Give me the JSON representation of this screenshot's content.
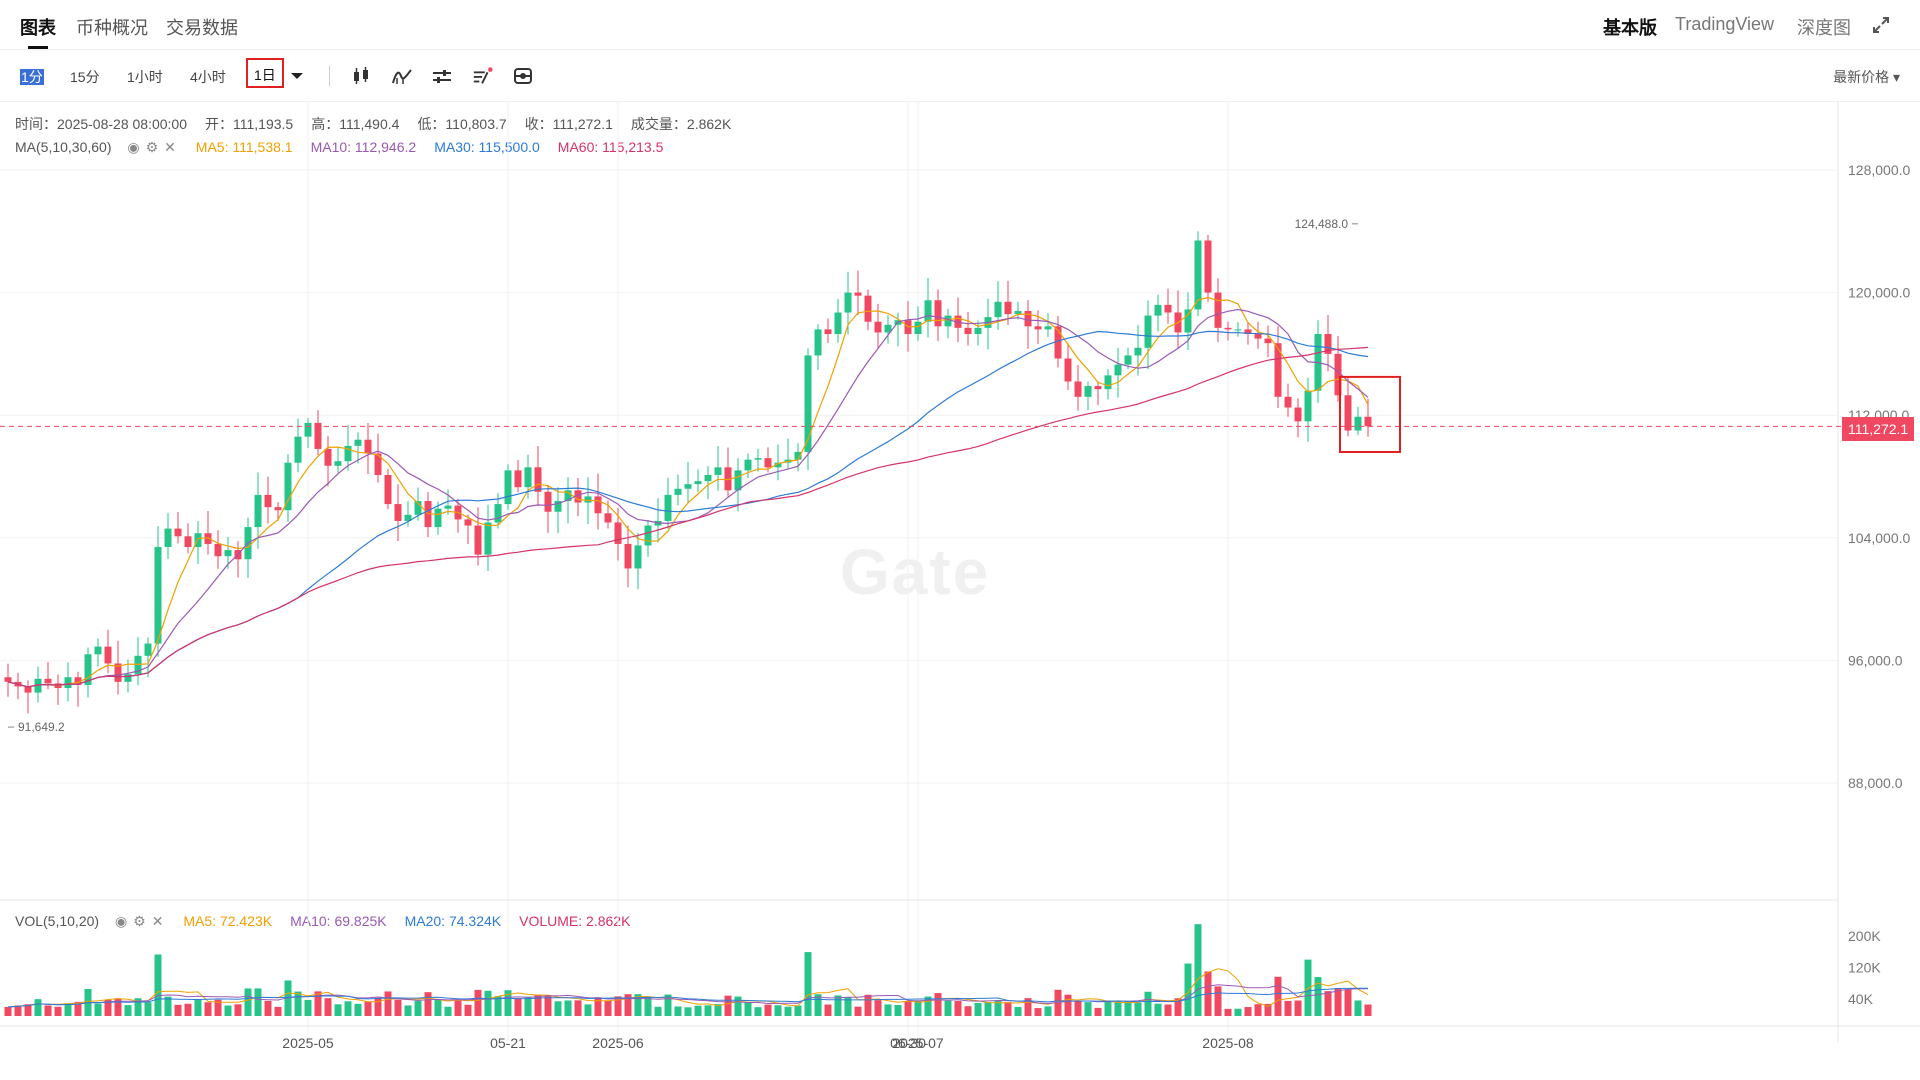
{
  "tabs": [
    {
      "label": "图表",
      "active": true
    },
    {
      "label": "币种概况",
      "active": false
    },
    {
      "label": "交易数据",
      "active": false
    }
  ],
  "views": [
    {
      "label": "基本版",
      "active": true
    },
    {
      "label": "TradingView",
      "active": false
    },
    {
      "label": "深度图",
      "active": false
    }
  ],
  "intervals": [
    "1分",
    "15分",
    "1小时",
    "4小时",
    "1日"
  ],
  "selected_interval": "1日",
  "price_type": "最新价格",
  "ohlc": {
    "time": "时间：2025-08-28 08:00:00",
    "open": "开：111,193.5",
    "high": "高：111,490.4",
    "low": "低：110,803.7",
    "close": "收：111,272.1",
    "volume": "成交量：2.862K"
  },
  "ma_indicator": {
    "label": "MA(5,10,30,60)",
    "ma5": "MA5: 111,538.1",
    "ma10": "MA10: 112,946.2",
    "ma30": "MA30: 115,500.0",
    "ma60": "MA60: 115,213.5"
  },
  "vol_indicator": {
    "label": "VOL(5,10,20)",
    "ma5": "MA5: 72.423K",
    "ma10": "MA10: 69.825K",
    "ma20": "MA20: 74.324K",
    "volume": "VOLUME: 2.862K"
  },
  "watermark": "Gate",
  "last_price": "111,272.1",
  "colors": {
    "up": "#26c489",
    "down": "#f04860",
    "ma5": "#f0a000",
    "ma10": "#9b59b6",
    "ma30": "#2d7bd6",
    "ma60": "#d6336c"
  },
  "chart_data": {
    "type": "candlestick",
    "y_axis_labels": [
      "128,000.0",
      "120,000.0",
      "112,000.0",
      "104,000.0",
      "96,000.0",
      "88,000.0"
    ],
    "y_ticks": [
      128000,
      120000,
      112000,
      104000,
      96000,
      88000
    ],
    "vol_axis_labels": [
      "200K",
      "120K",
      "40K"
    ],
    "vol_ticks": [
      200000,
      120000,
      40000
    ],
    "x_axis_labels": [
      "2025-05",
      "05-21",
      "2025-06",
      "06-30",
      "2025-07",
      "2025-08"
    ],
    "x_axis_dates": [
      "2025-05-01",
      "2025-05-21",
      "2025-06-01",
      "2025-06-30",
      "2025-07-01",
      "2025-08-01"
    ],
    "start_date": "2025-04-01",
    "max_annotation": {
      "text": "124,488.0",
      "date": "2025-08-14",
      "value": 124488
    },
    "min_annotation": {
      "text": "91,649.2",
      "date": "2025-04-01",
      "value": 91649.2
    },
    "closes": [
      94600,
      94300,
      93900,
      94800,
      94500,
      94200,
      94900,
      94400,
      96400,
      96900,
      95800,
      94600,
      95100,
      96300,
      97100,
      103400,
      104600,
      104100,
      103400,
      104300,
      103600,
      102800,
      103200,
      102600,
      104700,
      106800,
      106000,
      105800,
      108900,
      110600,
      111500,
      109800,
      108700,
      109000,
      110000,
      110400,
      109500,
      108100,
      106200,
      105100,
      105500,
      106400,
      104700,
      105900,
      106100,
      105200,
      104800,
      102900,
      105000,
      106200,
      108400,
      107300,
      108600,
      107000,
      105700,
      106400,
      107100,
      106300,
      106700,
      105600,
      105000,
      103600,
      102000,
      103500,
      104800,
      105100,
      106800,
      107200,
      107500,
      107700,
      108100,
      108600,
      107100,
      108400,
      109100,
      109200,
      108600,
      108900,
      109100,
      109600,
      115900,
      117600,
      117300,
      118700,
      120000,
      119800,
      118100,
      117400,
      117900,
      118200,
      117300,
      118100,
      119500,
      117800,
      118500,
      117700,
      117300,
      117700,
      118400,
      119400,
      118600,
      118800,
      117800,
      117600,
      117800,
      115700,
      114200,
      113200,
      113900,
      113700,
      114600,
      115300,
      115900,
      116400,
      118500,
      119200,
      118700,
      117400,
      118900,
      123400,
      120000,
      117700,
      117600,
      117600,
      117300,
      117000,
      116700,
      113200,
      112500,
      111600,
      113600,
      117300,
      116000,
      113300,
      111000,
      111900,
      111272
    ]
  }
}
